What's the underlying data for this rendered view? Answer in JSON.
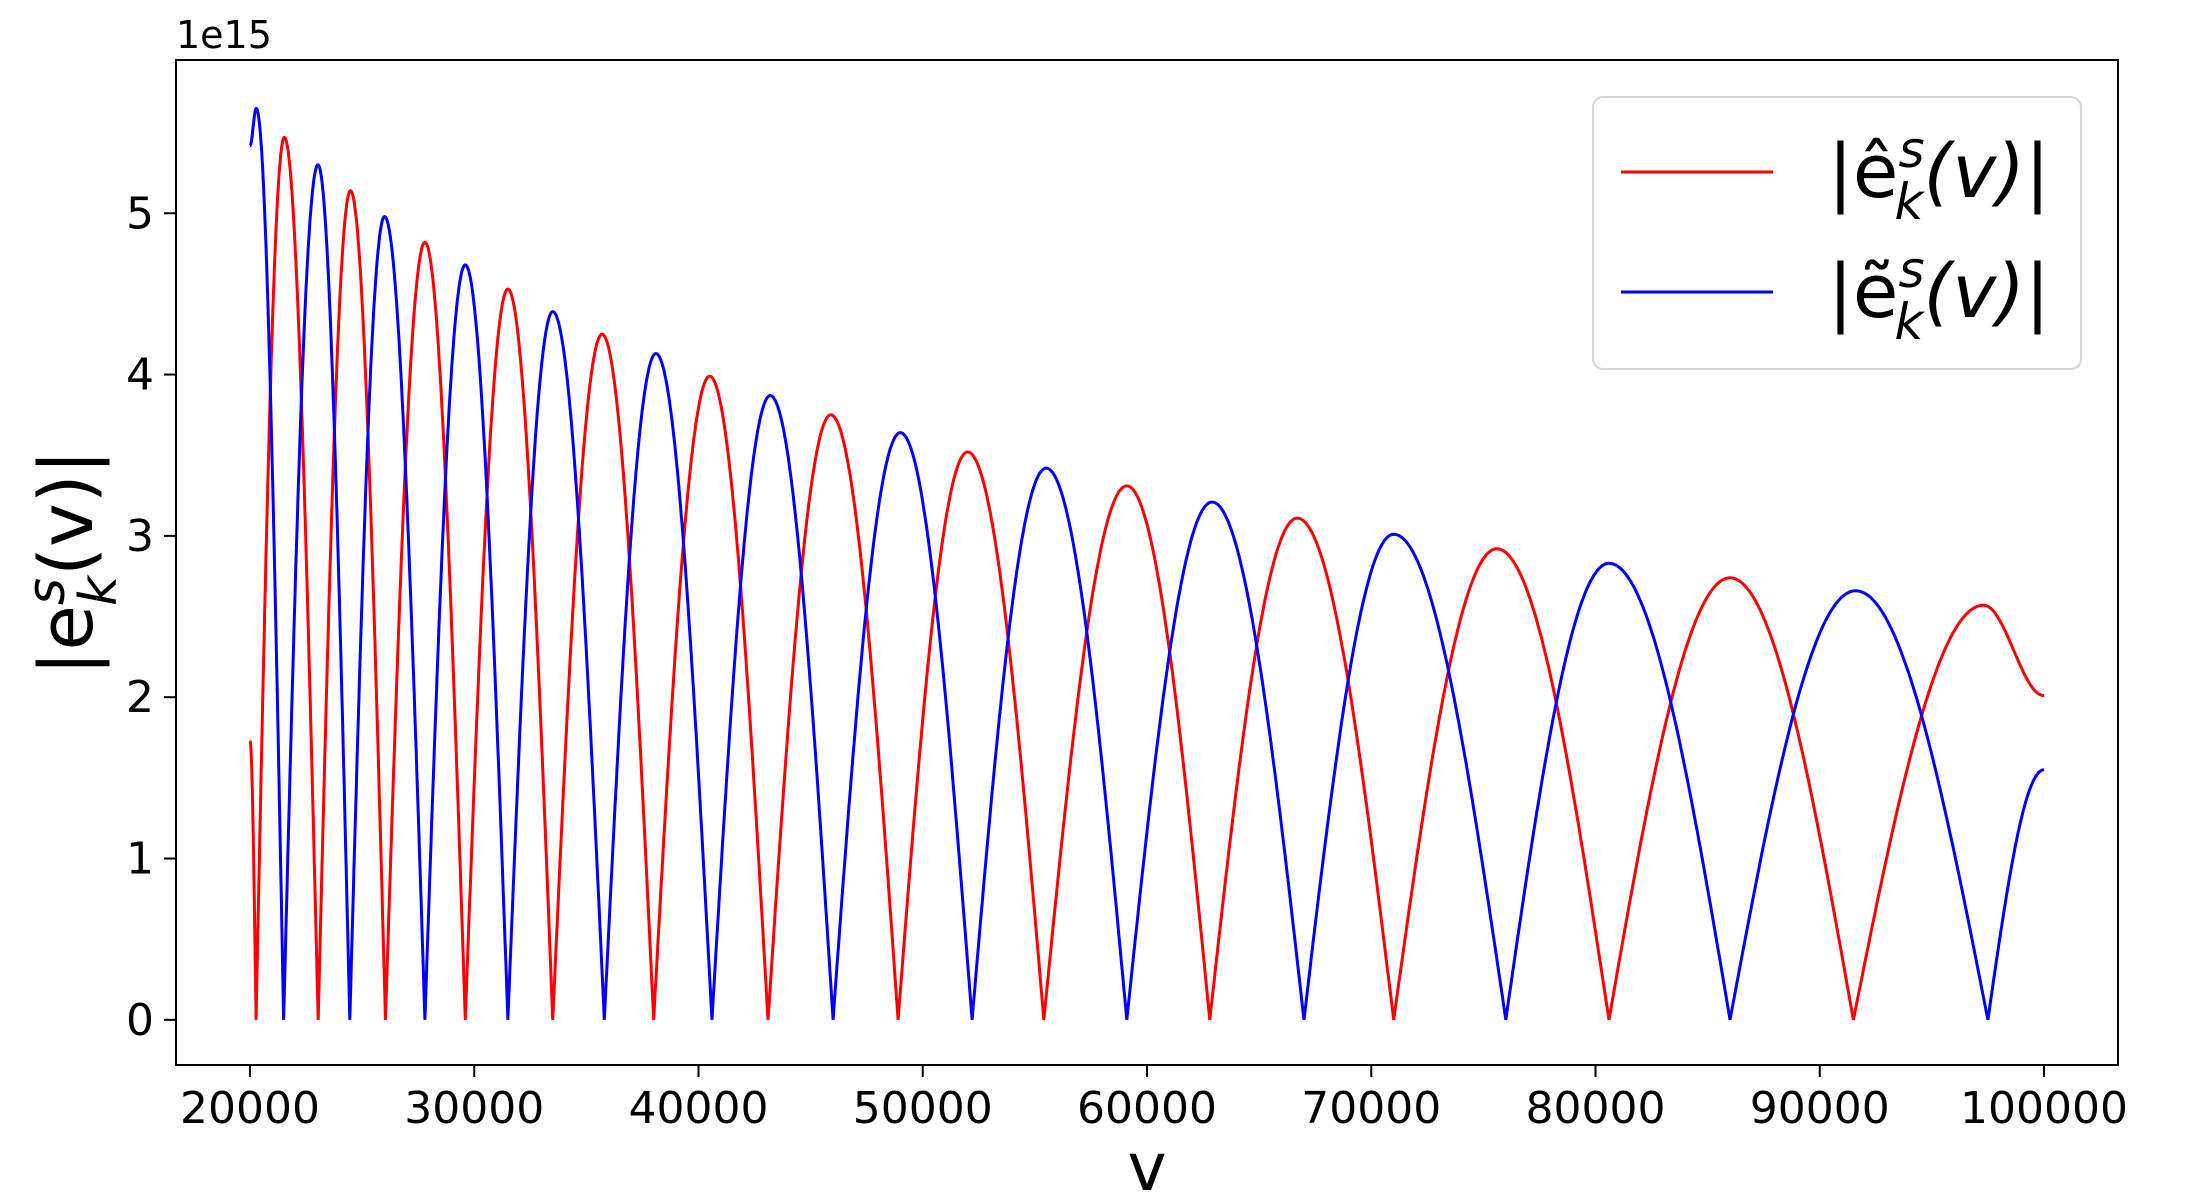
{
  "chart_data": {
    "type": "line",
    "xlabel": "v",
    "ylabel": "|e_k^s(v)|",
    "offset_text": "1e15",
    "xlim": [
      16700,
      103300
    ],
    "ylim": [
      -0.28,
      5.95
    ],
    "y_scale_factor": 1000000000000000.0,
    "xticks": [
      20000,
      30000,
      40000,
      50000,
      60000,
      70000,
      80000,
      90000,
      100000
    ],
    "xtick_labels": [
      "20000",
      "30000",
      "40000",
      "50000",
      "60000",
      "70000",
      "80000",
      "90000",
      "100000"
    ],
    "yticks": [
      0,
      1,
      2,
      3,
      4,
      5
    ],
    "ytick_labels": [
      "0",
      "1",
      "2",
      "3",
      "4",
      "5"
    ],
    "legend_position": "upper right",
    "series": [
      {
        "name": "|ê_k^s(v)|",
        "color": "#ff0000",
        "x": [
          20000,
          20270,
          21530,
          23040,
          24480,
          26040,
          27800,
          29600,
          31500,
          33500,
          35700,
          38000,
          40500,
          43100,
          45900,
          48900,
          52000,
          55400,
          59100,
          62800,
          66700,
          71000,
          75600,
          80600,
          86000,
          91500,
          97300,
          100000
        ],
        "y": [
          1.73,
          0.0,
          5.47,
          0.0,
          5.14,
          0.0,
          4.82,
          0.0,
          4.53,
          0.0,
          4.25,
          0.0,
          3.99,
          0.0,
          3.75,
          0.0,
          3.52,
          0.0,
          3.31,
          0.0,
          3.11,
          0.0,
          2.92,
          0.0,
          2.74,
          0.0,
          2.57,
          2.01
        ]
      },
      {
        "name": "|ẽ_k^s(v)|",
        "color": "#0000ff",
        "x": [
          20000,
          20280,
          21500,
          23030,
          24450,
          26000,
          27800,
          29600,
          31500,
          33500,
          35800,
          38100,
          40600,
          43200,
          46000,
          49000,
          52200,
          55500,
          59100,
          62900,
          67000,
          71000,
          76000,
          80600,
          86000,
          91600,
          97500,
          100000
        ],
        "y": [
          5.42,
          5.65,
          0.0,
          5.3,
          0.0,
          4.98,
          0.0,
          4.68,
          0.0,
          4.39,
          0.0,
          4.13,
          0.0,
          3.87,
          0.0,
          3.64,
          0.0,
          3.42,
          0.0,
          3.21,
          0.0,
          3.01,
          0.0,
          2.83,
          0.0,
          2.66,
          0.0,
          1.55
        ]
      }
    ]
  }
}
